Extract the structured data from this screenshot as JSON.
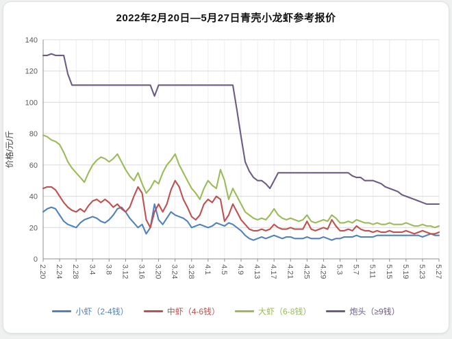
{
  "title": "2022年2月20日—5月27日青壳小龙虾参考报价",
  "chart_data": {
    "type": "line",
    "title": "2022年2月20日—5月27日青壳小龙虾参考报价",
    "xlabel": "",
    "ylabel": "价格/元/斤",
    "ylim": [
      0,
      140
    ],
    "ytick_step": 20,
    "xtick_step": 4,
    "grid": true,
    "legend_position": "bottom",
    "categories": [
      "2.20",
      "2.21",
      "2.22",
      "2.23",
      "2.24",
      "2.25",
      "2.26",
      "2.27",
      "2.28",
      "3.1",
      "3.2",
      "3.3",
      "3.4",
      "3.5",
      "3.6",
      "3.7",
      "3.8",
      "3.9",
      "3.10",
      "3.11",
      "3.12",
      "3.13",
      "3.14",
      "3.15",
      "3.16",
      "3.17",
      "3.18",
      "3.19",
      "3.20",
      "3.21",
      "3.22",
      "3.23",
      "3.24",
      "3.25",
      "3.26",
      "3.27",
      "3.28",
      "3.29",
      "3.30",
      "3.31",
      "4.1",
      "4.2",
      "4.3",
      "4.4",
      "4.5",
      "4.6",
      "4.7",
      "4.8",
      "4.9",
      "4.10",
      "4.11",
      "4.12",
      "4.13",
      "4.14",
      "4.15",
      "4.16",
      "4.17",
      "4.18",
      "4.19",
      "4.20",
      "4.21",
      "4.22",
      "4.23",
      "4.24",
      "4.25",
      "4.26",
      "4.27",
      "4.28",
      "4.29",
      "4.30",
      "5.1",
      "5.2",
      "5.3",
      "5.4",
      "5.5",
      "5.6",
      "5.7",
      "5.8",
      "5.9",
      "5.10",
      "5.11",
      "5.12",
      "5.13",
      "5.14",
      "5.15",
      "5.16",
      "5.17",
      "5.18",
      "5.19",
      "5.20",
      "5.21",
      "5.22",
      "5.23",
      "5.24",
      "5.25",
      "5.26",
      "5.27"
    ],
    "series": [
      {
        "name": "小虾（2-4钱）",
        "color": "#4f81bd",
        "values": [
          30,
          32,
          33,
          32,
          28,
          24,
          22,
          21,
          20,
          23,
          25,
          26,
          27,
          26,
          24,
          23,
          25,
          28,
          32,
          33,
          30,
          26,
          23,
          20,
          22,
          16,
          20,
          35,
          25,
          22,
          26,
          30,
          28,
          27,
          26,
          24,
          20,
          21,
          22,
          21,
          20,
          21,
          23,
          22,
          21,
          23,
          22,
          20,
          18,
          15,
          13,
          12,
          13,
          14,
          13,
          14,
          15,
          14,
          13,
          14,
          14,
          13,
          13,
          13,
          14,
          13,
          13,
          13,
          14,
          13,
          12,
          13,
          13,
          14,
          14,
          14,
          15,
          14,
          14,
          14,
          14,
          15,
          15,
          15,
          15,
          15,
          15,
          15,
          15,
          15,
          15,
          15,
          14,
          15,
          16,
          15,
          15
        ]
      },
      {
        "name": "中虾（4-6钱）",
        "color": "#c0504d",
        "values": [
          45,
          46,
          46,
          44,
          40,
          36,
          33,
          31,
          30,
          32,
          30,
          34,
          37,
          38,
          36,
          38,
          36,
          33,
          35,
          32,
          30,
          33,
          40,
          46,
          42,
          25,
          20,
          30,
          35,
          30,
          35,
          44,
          50,
          46,
          38,
          33,
          27,
          25,
          28,
          35,
          38,
          36,
          40,
          38,
          24,
          28,
          35,
          30,
          25,
          22,
          19,
          18,
          18,
          19,
          18,
          19,
          22,
          20,
          19,
          19,
          20,
          19,
          19,
          19,
          24,
          19,
          18,
          19,
          20,
          19,
          25,
          21,
          18,
          18,
          19,
          18,
          21,
          19,
          18,
          18,
          17,
          18,
          17,
          17,
          18,
          17,
          17,
          17,
          18,
          17,
          16,
          17,
          18,
          17,
          16,
          16,
          17
        ]
      },
      {
        "name": "大虾（6-8钱）",
        "color": "#9bbb59",
        "values": [
          79,
          78,
          76,
          75,
          73,
          68,
          62,
          58,
          55,
          52,
          49,
          55,
          60,
          63,
          65,
          64,
          62,
          64,
          67,
          62,
          57,
          53,
          50,
          55,
          48,
          42,
          45,
          50,
          48,
          55,
          60,
          63,
          67,
          60,
          55,
          50,
          45,
          42,
          38,
          45,
          50,
          47,
          45,
          57,
          50,
          38,
          45,
          40,
          35,
          30,
          28,
          26,
          25,
          26,
          25,
          28,
          32,
          28,
          26,
          25,
          26,
          25,
          24,
          25,
          28,
          24,
          23,
          24,
          25,
          24,
          28,
          26,
          23,
          23,
          24,
          23,
          25,
          24,
          23,
          23,
          22,
          23,
          22,
          22,
          23,
          22,
          22,
          22,
          23,
          22,
          21,
          21,
          22,
          21,
          21,
          20,
          21
        ]
      },
      {
        "name": "炮头（≥9钱）",
        "color": "#6b5b85",
        "values": [
          130,
          130,
          131,
          130,
          130,
          130,
          118,
          111,
          111,
          111,
          111,
          111,
          111,
          111,
          111,
          111,
          111,
          111,
          111,
          111,
          111,
          111,
          111,
          111,
          111,
          111,
          111,
          104,
          111,
          111,
          111,
          111,
          111,
          111,
          111,
          111,
          111,
          111,
          111,
          111,
          111,
          111,
          111,
          111,
          111,
          111,
          111,
          95,
          78,
          62,
          56,
          52,
          50,
          50,
          48,
          45,
          50,
          55,
          55,
          55,
          55,
          55,
          55,
          55,
          55,
          55,
          55,
          55,
          55,
          55,
          55,
          55,
          55,
          55,
          55,
          53,
          52,
          52,
          50,
          50,
          50,
          49,
          48,
          46,
          45,
          44,
          43,
          41,
          40,
          39,
          38,
          37,
          36,
          35,
          35,
          35,
          35
        ]
      }
    ]
  }
}
